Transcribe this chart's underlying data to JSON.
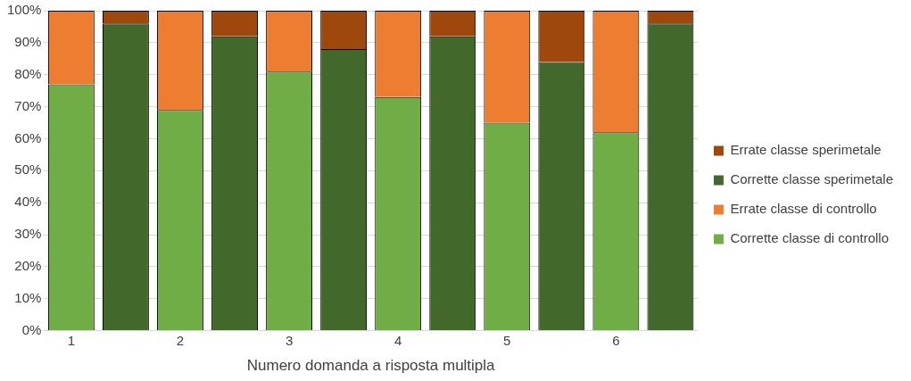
{
  "chart_data": {
    "type": "bar",
    "stacked": true,
    "xlabel": "Numero domanda a risposta multipla",
    "categories": [
      "1",
      null,
      "2",
      null,
      "3",
      null,
      "4",
      null,
      "5",
      null,
      "6",
      null
    ],
    "series": [
      {
        "name": "Corrette classe di controllo",
        "color": "#70ad47",
        "values": [
          77,
          null,
          69,
          null,
          81,
          null,
          73,
          null,
          65,
          null,
          62,
          null
        ]
      },
      {
        "name": "Errate classe di controllo",
        "color": "#ed7d31",
        "values": [
          23,
          null,
          31,
          null,
          19,
          null,
          27,
          null,
          35,
          null,
          38,
          null
        ]
      },
      {
        "name": "Corrette classe sperimetale",
        "color": "#43682b",
        "values": [
          null,
          96,
          null,
          92,
          null,
          88,
          null,
          92,
          null,
          84,
          null,
          96
        ]
      },
      {
        "name": "Errate classe sperimetale",
        "color": "#9e480e",
        "values": [
          null,
          4,
          null,
          8,
          null,
          12,
          null,
          8,
          null,
          16,
          null,
          4
        ]
      }
    ],
    "ylim": [
      0,
      100
    ],
    "yticks": [
      {
        "value": 0,
        "label": "0%"
      },
      {
        "value": 10,
        "label": "10%"
      },
      {
        "value": 20,
        "label": "20%"
      },
      {
        "value": 30,
        "label": "30%"
      },
      {
        "value": 40,
        "label": "40%"
      },
      {
        "value": 50,
        "label": "50%"
      },
      {
        "value": 60,
        "label": "60%"
      },
      {
        "value": 70,
        "label": "70%"
      },
      {
        "value": 80,
        "label": "80%"
      },
      {
        "value": 90,
        "label": "90%"
      },
      {
        "value": 100,
        "label": "100%"
      }
    ],
    "grid": "y",
    "legend": "right"
  }
}
